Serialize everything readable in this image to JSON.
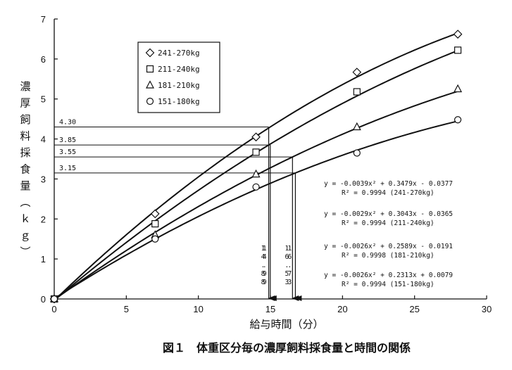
{
  "chart_data": {
    "type": "scatter",
    "title": "",
    "caption": "図１　体重区分毎の濃厚飼料採食量と時間の関係",
    "xlabel": "給与時間（分）",
    "ylabel": "濃厚飼料採食量（ｋｇ）",
    "xlim": [
      0,
      30
    ],
    "ylim": [
      0,
      7
    ],
    "xticks": [
      "0",
      "5",
      "10",
      "15",
      "20",
      "25",
      "30"
    ],
    "yticks": [
      "0",
      "1",
      "2",
      "3",
      "4",
      "5",
      "6",
      "7"
    ],
    "grid": false,
    "legend_position": "top-left",
    "series": [
      {
        "name": "241-270kg",
        "marker": "diamond",
        "x": [
          0,
          7,
          14,
          21,
          28
        ],
        "y": [
          0,
          2.13,
          4.05,
          5.67,
          6.62
        ],
        "fit": {
          "a": -0.0039,
          "b": 0.3479,
          "c": -0.0377
        },
        "equation": "y = -0.0039x² + 0.3479x - 0.0377",
        "r2": "R² = 0.9994 (241-270kg)"
      },
      {
        "name": "211-240kg",
        "marker": "square",
        "x": [
          0,
          7,
          14,
          21,
          28
        ],
        "y": [
          0,
          1.88,
          3.67,
          5.18,
          6.22
        ],
        "fit": {
          "a": -0.0029,
          "b": 0.3043,
          "c": -0.0365
        },
        "equation": "y = -0.0029x² + 0.3043x - 0.0365",
        "r2": "R² = 0.9994 (211-240kg)"
      },
      {
        "name": "181-210kg",
        "marker": "triangle",
        "x": [
          0,
          7,
          14,
          21,
          28
        ],
        "y": [
          0,
          1.6,
          3.12,
          4.3,
          5.25
        ],
        "fit": {
          "a": -0.0026,
          "b": 0.2589,
          "c": -0.0191
        },
        "equation": "y = -0.0026x² + 0.2589x - 0.0191",
        "r2": "R² = 0.9998 (181-210kg)"
      },
      {
        "name": "151-180kg",
        "marker": "circle",
        "x": [
          0,
          7,
          14,
          21,
          28
        ],
        "y": [
          0,
          1.5,
          2.8,
          3.65,
          4.48
        ],
        "fit": {
          "a": -0.0026,
          "b": 0.2313,
          "c": 0.0079
        },
        "equation": "y = -0.0026x² + 0.2313x + 0.0079",
        "r2": "R² = 0.9994 (151-180kg)"
      }
    ],
    "annotations": {
      "hlines": [
        {
          "label": "4.30",
          "y": 4.3,
          "x_end": 14.88
        },
        {
          "label": "3.85",
          "y": 3.85,
          "x_end": 14.99
        },
        {
          "label": "3.55",
          "y": 3.55,
          "x_end": 16.53
        },
        {
          "label": "3.15",
          "y": 3.15,
          "x_end": 16.73
        }
      ],
      "vlines": [
        {
          "x": 14.88,
          "chars": [
            "1",
            "4",
            ".",
            "8",
            "8"
          ]
        },
        {
          "x": 14.99,
          "chars": [
            "1",
            "4",
            ".",
            "9",
            "9"
          ]
        },
        {
          "x": 16.53,
          "chars": [
            "1",
            "6",
            ".",
            "5",
            "3"
          ]
        },
        {
          "x": 16.73,
          "chars": [
            "1",
            "6",
            ".",
            "7",
            "3"
          ]
        }
      ]
    }
  }
}
